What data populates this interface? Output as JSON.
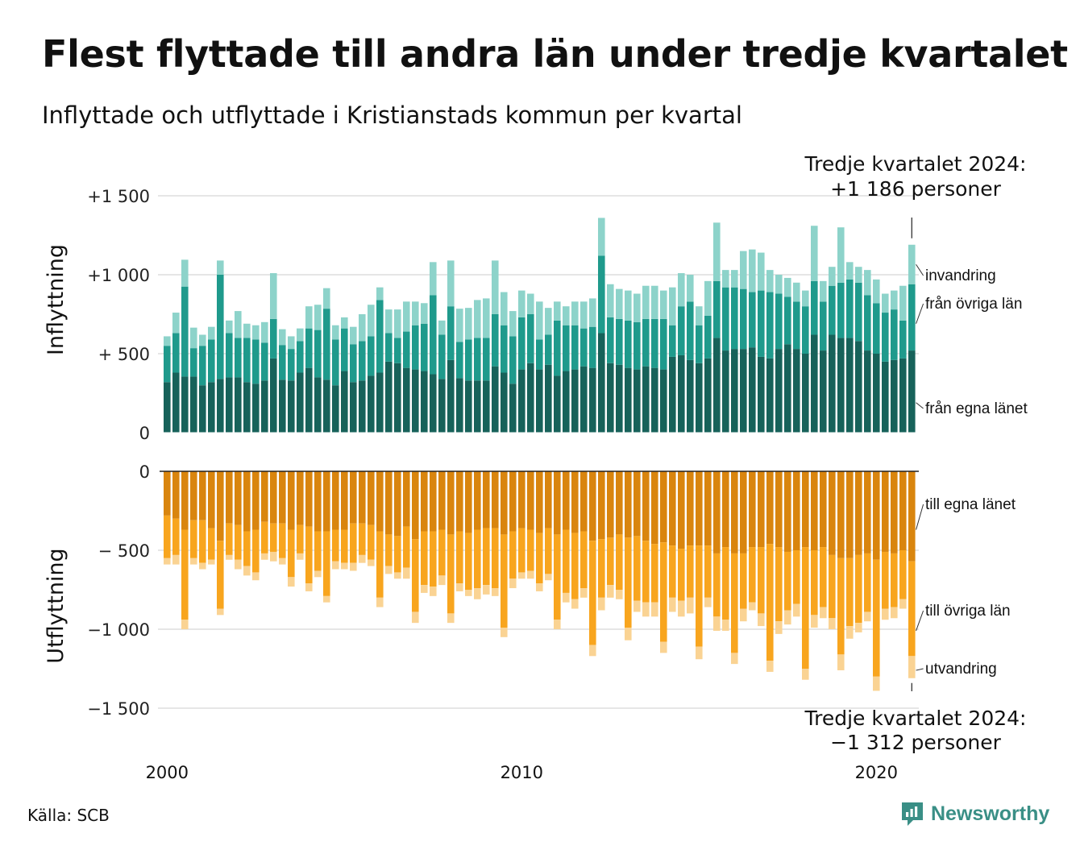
{
  "title": "Flest flyttade till andra län under tredje kvartalet",
  "subtitle": "Inflyttade och utflyttade i Kristianstads kommun per kvartal",
  "source": "Källa: SCB",
  "logo_text": "Newsworthy",
  "colors": {
    "in_egna": "#17625a",
    "in_ovriga": "#1f9a8c",
    "in_invandring": "#8dd3ca",
    "out_egna": "#d9850e",
    "out_ovriga": "#f8a51e",
    "out_utvandring": "#fad393",
    "grid": "#dddddd",
    "logo": "#3a8f86"
  },
  "chart_data": [
    {
      "type": "bar",
      "stacked": true,
      "ylabel": "Inflyttning",
      "ylim": [
        0,
        1500
      ],
      "yticks": [
        0,
        500,
        1000,
        1500
      ],
      "ytick_labels": [
        "0",
        "+  500",
        "+1 000",
        "+1 500"
      ],
      "x_start": "2000 Q1",
      "x_end": "2024 Q3",
      "xtick_labels": [
        "2000",
        "2010",
        "2020"
      ],
      "series": [
        {
          "name": "från egna länet",
          "values": [
            320,
            380,
            355,
            355,
            300,
            320,
            340,
            350,
            350,
            320,
            310,
            330,
            470,
            335,
            330,
            380,
            410,
            350,
            335,
            300,
            390,
            320,
            330,
            360,
            380,
            450,
            440,
            410,
            400,
            390,
            370,
            340,
            460,
            345,
            330,
            330,
            330,
            420,
            380,
            310,
            400,
            440,
            400,
            430,
            360,
            390,
            400,
            420,
            410,
            630,
            440,
            430,
            410,
            400,
            420,
            410,
            400,
            480,
            490,
            460,
            440,
            470,
            600,
            520,
            530,
            530,
            540,
            480,
            470,
            530,
            560,
            530,
            500,
            620,
            520,
            620,
            600,
            600,
            580,
            520,
            500,
            450,
            460,
            470,
            520
          ]
        },
        {
          "name": "från övriga län",
          "values": [
            230,
            250,
            570,
            180,
            250,
            270,
            660,
            280,
            250,
            280,
            280,
            240,
            250,
            220,
            200,
            200,
            250,
            300,
            450,
            290,
            270,
            240,
            250,
            250,
            460,
            180,
            160,
            230,
            280,
            300,
            500,
            280,
            340,
            230,
            260,
            270,
            270,
            330,
            300,
            300,
            330,
            310,
            190,
            190,
            350,
            290,
            280,
            240,
            260,
            490,
            290,
            290,
            300,
            300,
            300,
            310,
            320,
            200,
            310,
            370,
            240,
            270,
            360,
            400,
            390,
            380,
            350,
            420,
            420,
            350,
            300,
            300,
            300,
            340,
            310,
            310,
            350,
            370,
            370,
            350,
            320,
            310,
            320,
            240,
            420
          ]
        },
        {
          "name": "invandring",
          "values": [
            60,
            130,
            170,
            130,
            70,
            80,
            90,
            80,
            170,
            90,
            90,
            130,
            290,
            100,
            80,
            80,
            140,
            160,
            130,
            90,
            70,
            110,
            170,
            200,
            80,
            150,
            180,
            190,
            150,
            130,
            210,
            90,
            290,
            210,
            200,
            240,
            250,
            340,
            210,
            160,
            170,
            130,
            240,
            170,
            120,
            120,
            150,
            170,
            180,
            240,
            210,
            190,
            190,
            180,
            210,
            210,
            180,
            240,
            210,
            170,
            120,
            220,
            370,
            110,
            110,
            240,
            270,
            240,
            140,
            120,
            120,
            120,
            100,
            350,
            130,
            120,
            350,
            110,
            100,
            160,
            150,
            120,
            120,
            220,
            250
          ]
        }
      ]
    },
    {
      "type": "bar",
      "stacked": true,
      "ylabel": "Utflyttning",
      "ylim": [
        -1500,
        0
      ],
      "yticks": [
        0,
        -500,
        -1000,
        -1500
      ],
      "ytick_labels": [
        "0",
        "−  500",
        "−1 000",
        "−1 500"
      ],
      "x_start": "2000 Q1",
      "x_end": "2024 Q3",
      "xtick_labels": [
        "2000",
        "2010",
        "2020"
      ],
      "series": [
        {
          "name": "till egna länet",
          "values": [
            -280,
            -300,
            -370,
            -310,
            -310,
            -360,
            -440,
            -330,
            -340,
            -380,
            -370,
            -320,
            -330,
            -330,
            -370,
            -340,
            -350,
            -380,
            -380,
            -370,
            -370,
            -330,
            -330,
            -340,
            -380,
            -400,
            -410,
            -350,
            -430,
            -380,
            -380,
            -370,
            -400,
            -380,
            -390,
            -370,
            -360,
            -360,
            -400,
            -380,
            -360,
            -370,
            -390,
            -360,
            -400,
            -370,
            -390,
            -380,
            -440,
            -430,
            -420,
            -400,
            -420,
            -410,
            -440,
            -460,
            -450,
            -470,
            -490,
            -470,
            -470,
            -470,
            -520,
            -480,
            -520,
            -520,
            -480,
            -480,
            -460,
            -480,
            -510,
            -500,
            -480,
            -500,
            -480,
            -530,
            -550,
            -550,
            -530,
            -520,
            -560,
            -510,
            -520,
            -500,
            -570
          ]
        },
        {
          "name": "till övriga län",
          "values": [
            -270,
            -230,
            -570,
            -240,
            -270,
            -200,
            -430,
            -200,
            -220,
            -220,
            -270,
            -200,
            -180,
            -220,
            -300,
            -180,
            -360,
            -250,
            -410,
            -200,
            -210,
            -250,
            -200,
            -220,
            -420,
            -200,
            -230,
            -260,
            -460,
            -340,
            -350,
            -290,
            -500,
            -330,
            -360,
            -370,
            -360,
            -380,
            -590,
            -300,
            -280,
            -260,
            -320,
            -290,
            -540,
            -400,
            -420,
            -360,
            -660,
            -370,
            -300,
            -350,
            -570,
            -410,
            -390,
            -370,
            -630,
            -330,
            -330,
            -330,
            -640,
            -330,
            -400,
            -460,
            -630,
            -350,
            -350,
            -420,
            -740,
            -470,
            -370,
            -340,
            -770,
            -410,
            -380,
            -400,
            -610,
            -430,
            -430,
            -370,
            -740,
            -360,
            -340,
            -310,
            -600
          ]
        },
        {
          "name": "utvandring",
          "values": [
            -40,
            -60,
            -60,
            -40,
            -40,
            -30,
            -40,
            -30,
            -60,
            -60,
            -50,
            -40,
            -60,
            -40,
            -60,
            -40,
            -50,
            -40,
            -40,
            -50,
            -40,
            -50,
            -50,
            -40,
            -60,
            -50,
            -40,
            -70,
            -70,
            -50,
            -60,
            -60,
            -60,
            -50,
            -40,
            -70,
            -60,
            -50,
            -60,
            -60,
            -40,
            -50,
            -50,
            -40,
            -60,
            -60,
            -60,
            -60,
            -70,
            -80,
            -80,
            -60,
            -80,
            -70,
            -90,
            -90,
            -70,
            -90,
            -100,
            -100,
            -80,
            -60,
            -90,
            -70,
            -70,
            -80,
            -50,
            -80,
            -70,
            -80,
            -90,
            -80,
            -70,
            -80,
            -70,
            -70,
            -100,
            -80,
            -60,
            -60,
            -90,
            -70,
            -70,
            -60,
            -140
          ]
        }
      ]
    }
  ],
  "annotations": {
    "in_total": {
      "line1": "Tredje kvartalet 2024:",
      "line2": "+1 186 personer"
    },
    "out_total": {
      "line1": "Tredje kvartalet 2024:",
      "line2": "−1 312 personer"
    }
  }
}
